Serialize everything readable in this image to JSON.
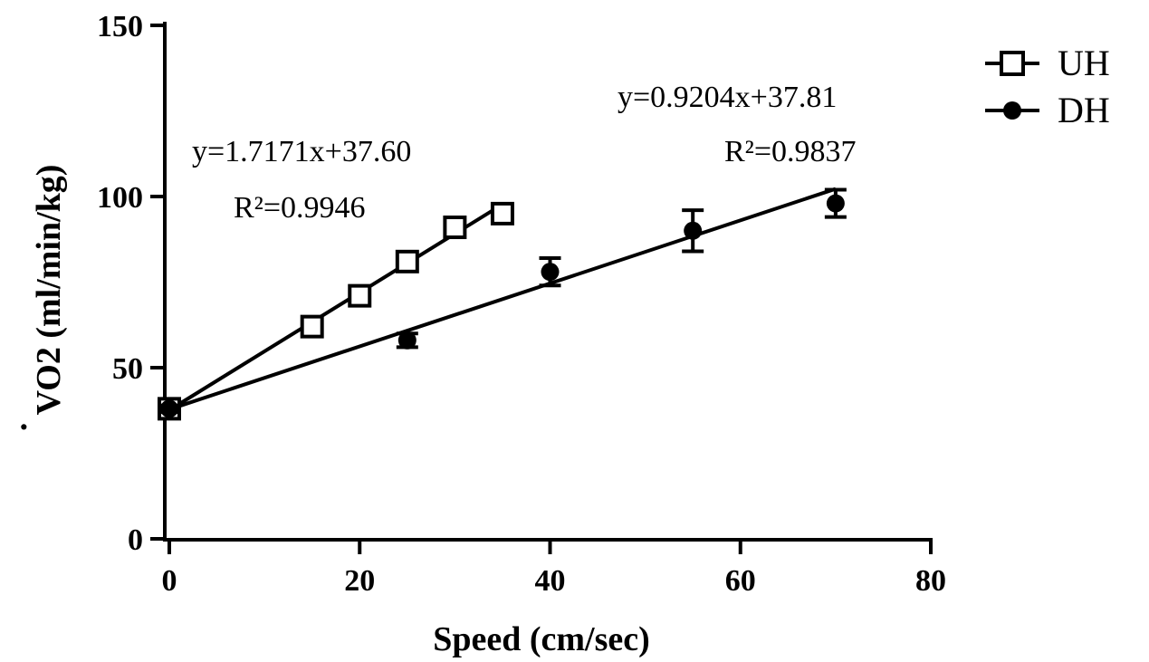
{
  "chart_data": {
    "type": "scatter",
    "xlabel": "Speed (cm/sec)",
    "ylabel": "VO2 (ml/min/kg)",
    "ylabel_dot": "·",
    "xlim": [
      0,
      80
    ],
    "ylim": [
      0,
      150
    ],
    "xticks": [
      0,
      20,
      40,
      60,
      80
    ],
    "yticks": [
      0,
      50,
      100,
      150
    ],
    "grid": false,
    "legend_position": "top-right",
    "series": [
      {
        "name": "UH",
        "marker": "open-square",
        "color": "#000000",
        "points": [
          {
            "x": 0,
            "y": 38
          },
          {
            "x": 15,
            "y": 62
          },
          {
            "x": 20,
            "y": 71
          },
          {
            "x": 25,
            "y": 81
          },
          {
            "x": 30,
            "y": 91
          },
          {
            "x": 35,
            "y": 95
          }
        ],
        "fit": {
          "equation": "y=1.7171x+37.60",
          "r2": "R²=0.9946",
          "slope": 1.7171,
          "intercept": 37.6,
          "x_range": [
            0,
            35
          ]
        }
      },
      {
        "name": "DH",
        "marker": "filled-circle",
        "color": "#000000",
        "points": [
          {
            "x": 0,
            "y": 38,
            "err": 1
          },
          {
            "x": 25,
            "y": 58,
            "err": 2
          },
          {
            "x": 40,
            "y": 78,
            "err": 4
          },
          {
            "x": 55,
            "y": 90,
            "err": 6
          },
          {
            "x": 70,
            "y": 98,
            "err": 4
          }
        ],
        "fit": {
          "equation": "y=0.9204x+37.81",
          "r2": "R²=0.9837",
          "slope": 0.9204,
          "intercept": 37.81,
          "x_range": [
            0,
            70
          ]
        }
      }
    ]
  }
}
